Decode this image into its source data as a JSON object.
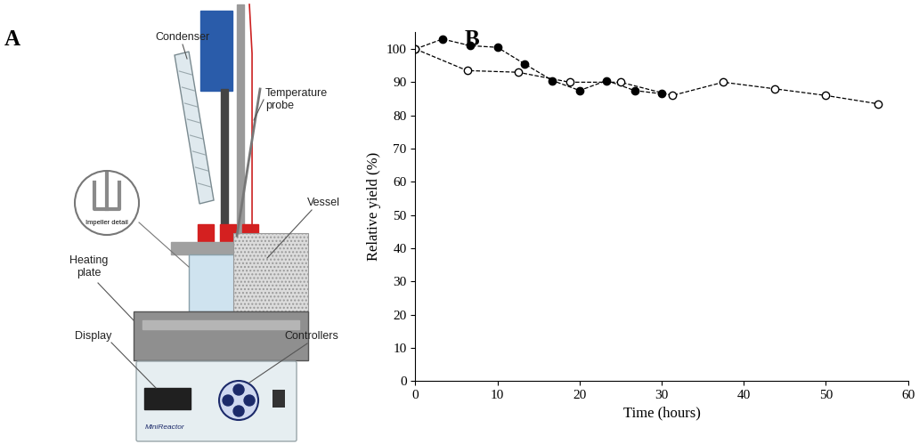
{
  "panel_labels": [
    "A",
    "B"
  ],
  "diagram": {
    "labels": {
      "condenser": "Condenser",
      "temperature_probe": "Temperature\nprobe",
      "impeller_detail": "Impeller detail",
      "vessel": "Vessel",
      "heating_plate": "Heating\nplate",
      "display": "Display",
      "controllers": "Controllers",
      "device_name": "MiniReactor"
    }
  },
  "chart_data": {
    "type": "line",
    "xlabel": "Time (hours)",
    "ylabel": "Relative yield (%)",
    "xlim": [
      0,
      60
    ],
    "xticks": [
      0,
      10,
      20,
      30,
      40,
      50,
      60
    ],
    "ylim": [
      0,
      105
    ],
    "yticks": [
      0,
      10,
      20,
      30,
      40,
      50,
      60,
      70,
      80,
      90,
      100
    ],
    "series": [
      {
        "color": "#000000",
        "marker": "filled_circle",
        "line_style": "dashed",
        "x": [
          0,
          3.3,
          6.7,
          10,
          13.3,
          16.7,
          20,
          23.3,
          26.7,
          30
        ],
        "values": [
          100,
          103,
          101,
          100.5,
          95.5,
          90.5,
          87.5,
          90.5,
          87.5,
          86.5
        ]
      },
      {
        "color": "#000000",
        "marker": "open_circle",
        "line_style": "dashed",
        "x": [
          0,
          6.3,
          12.5,
          18.8,
          25,
          31.3,
          37.5,
          43.8,
          50,
          56.3
        ],
        "values": [
          100,
          93.5,
          93,
          90,
          90,
          86,
          90,
          88,
          86,
          83.5
        ]
      }
    ]
  }
}
